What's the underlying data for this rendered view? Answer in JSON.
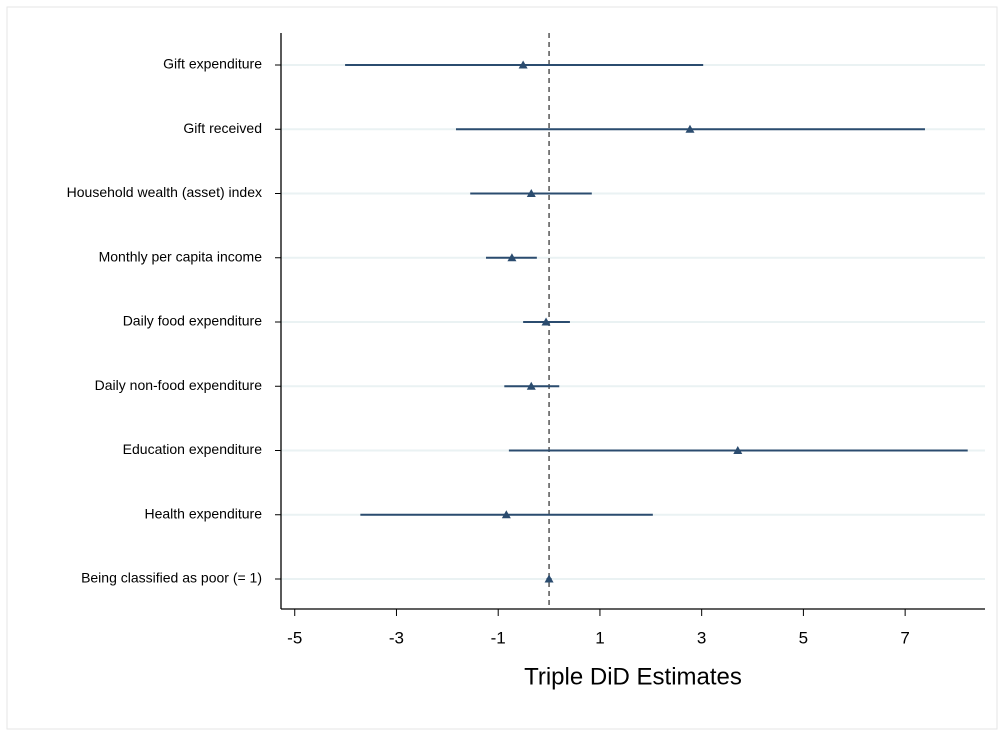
{
  "chart_data": {
    "type": "coefplot",
    "xlabel": "Triple DiD Estimates",
    "categories": [
      "Gift expenditure",
      "Gift received",
      "Household wealth (asset) index",
      "Monthly per capita income",
      "Daily food expenditure",
      "Daily non-food expenditure",
      "Education expenditure",
      "Health expenditure",
      "Being classified as poor (= 1)"
    ],
    "values": [
      -0.51,
      2.77,
      -0.35,
      -0.73,
      -0.06,
      -0.35,
      3.71,
      -0.84,
      0.0
    ],
    "lower": [
      -4.01,
      -1.83,
      -1.55,
      -1.24,
      -0.51,
      -0.88,
      -0.79,
      -3.71,
      -0.05
    ],
    "upper": [
      3.03,
      7.39,
      0.84,
      -0.24,
      0.41,
      0.2,
      8.23,
      2.04,
      0.05
    ],
    "color": "#2b4c6f",
    "xlim": [
      -5.27,
      8.57
    ],
    "xticks": [
      -5,
      -3,
      -1,
      1,
      3,
      5,
      7
    ],
    "xline": 0,
    "grid": true
  }
}
